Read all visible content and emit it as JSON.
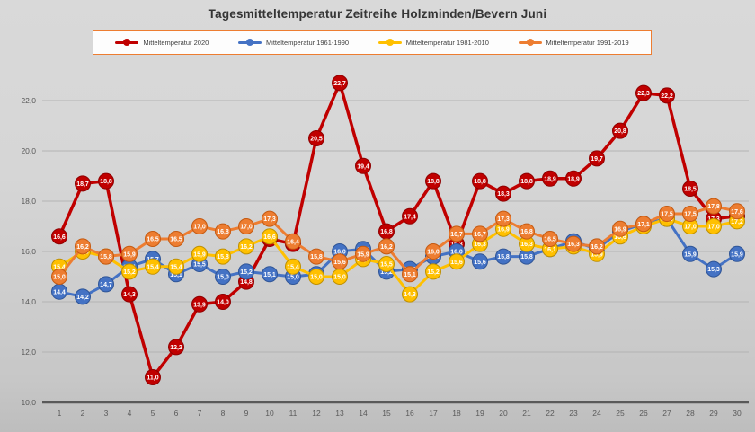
{
  "chart": {
    "title": "Tagesmitteltemperatur Zeitreihe Holzminden/Bevern Juni"
  },
  "chart_data": {
    "type": "line",
    "title": "Tagesmitteltemperatur Zeitreihe Holzminden/Bevern Juni",
    "xlabel": "",
    "ylabel": "",
    "categories": [
      1,
      2,
      3,
      4,
      5,
      6,
      7,
      8,
      9,
      10,
      11,
      12,
      13,
      14,
      15,
      16,
      17,
      18,
      19,
      20,
      21,
      22,
      23,
      24,
      25,
      26,
      27,
      28,
      29,
      30
    ],
    "y_ticks": [
      "10,0",
      "12,0",
      "14,0",
      "16,0",
      "18,0",
      "20,0",
      "22,0"
    ],
    "ylim": [
      10,
      23
    ],
    "grid": true,
    "legend_position": "top",
    "decimal_separator": ",",
    "marker_style": "circle-with-value-label",
    "series": [
      {
        "name": "Mitteltemperatur 2020",
        "color": "#C00000",
        "edge_color": "#8f0000",
        "values": [
          16.6,
          18.7,
          18.8,
          14.3,
          11.0,
          12.2,
          13.9,
          14.0,
          14.8,
          16.5,
          16.3,
          20.5,
          22.7,
          19.4,
          16.8,
          17.4,
          18.8,
          16.3,
          18.8,
          18.3,
          18.8,
          18.9,
          18.9,
          19.7,
          20.8,
          22.3,
          22.2,
          18.5,
          17.3,
          17.4
        ]
      },
      {
        "name": "Mitteltemperatur 1961-1990",
        "color": "#4472C4",
        "edge_color": "#2f5597",
        "values": [
          14.4,
          14.2,
          14.7,
          15.4,
          15.7,
          15.1,
          15.5,
          15.0,
          15.2,
          15.1,
          15.0,
          15.1,
          16.0,
          16.1,
          15.2,
          15.3,
          15.8,
          16.0,
          15.6,
          15.8,
          15.8,
          16.1,
          16.4,
          16.1,
          16.8,
          17.1,
          17.3,
          15.9,
          15.3,
          15.9
        ]
      },
      {
        "name": "Mitteltemperatur 1981-2010",
        "color": "#FFC000",
        "edge_color": "#bf9000",
        "values": [
          15.4,
          16.0,
          15.8,
          15.2,
          15.4,
          15.4,
          15.9,
          15.8,
          16.2,
          16.6,
          15.4,
          15.0,
          15.0,
          15.7,
          15.5,
          14.3,
          15.2,
          15.6,
          16.3,
          16.9,
          16.3,
          16.1,
          16.2,
          15.9,
          16.6,
          17.0,
          17.3,
          17.0,
          17.0,
          17.2
        ]
      },
      {
        "name": "Mitteltemperatur 1991-2019",
        "color": "#ED7D31",
        "edge_color": "#c55a11",
        "values": [
          15.0,
          16.2,
          15.8,
          15.9,
          16.5,
          16.5,
          17.0,
          16.8,
          17.0,
          17.3,
          16.4,
          15.8,
          15.6,
          15.9,
          16.2,
          15.1,
          16.0,
          16.7,
          16.7,
          17.3,
          16.8,
          16.5,
          16.3,
          16.2,
          16.9,
          17.1,
          17.5,
          17.5,
          17.8,
          17.6
        ]
      }
    ]
  }
}
